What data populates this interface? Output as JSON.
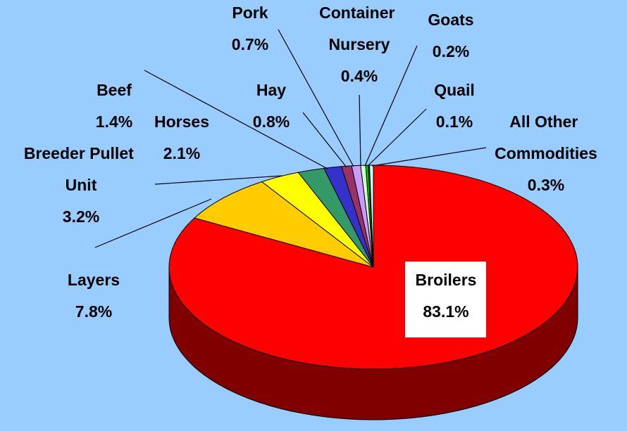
{
  "chart_data": {
    "type": "pie",
    "categories": [
      "Broilers",
      "Layers",
      "Breeder Pullet Unit",
      "Horses",
      "Beef",
      "Hay",
      "Pork",
      "Container Nursery",
      "Goats",
      "Quail",
      "All Other Commodities"
    ],
    "values": [
      83.1,
      7.8,
      3.2,
      2.1,
      1.4,
      0.8,
      0.7,
      0.4,
      0.2,
      0.1,
      0.3
    ],
    "value_labels": [
      "83.1%",
      "7.8%",
      "3.2%",
      "2.1%",
      "1.4%",
      "0.8%",
      "0.7%",
      "0.4%",
      "0.2%",
      "0.1%",
      "0.3%"
    ],
    "colors": [
      "#ff0000",
      "#ffcc00",
      "#ffff00",
      "#339966",
      "#3333cc",
      "#993366",
      "#cc99ff",
      "#ccffcc",
      "#00cc00",
      "#006600",
      "#ccffff"
    ]
  }
}
